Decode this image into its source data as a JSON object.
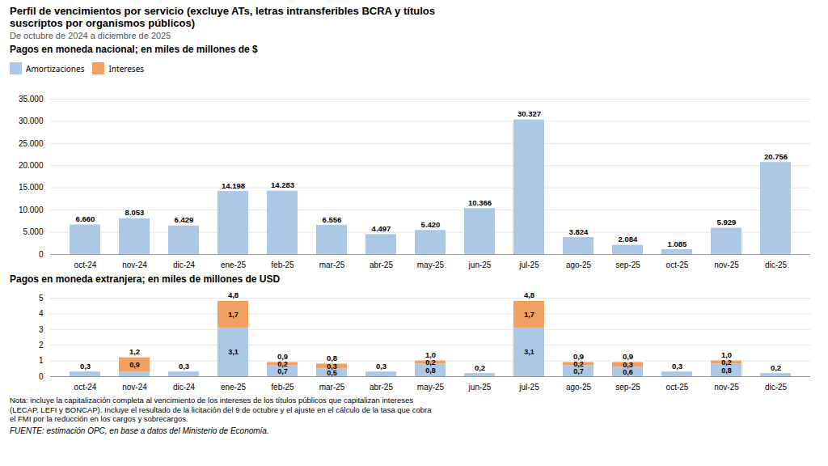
{
  "title": "Perfil de vencimientos por servicio (excluye ATs, letras intransferibles BCRA y títulos\nsuscriptos por organismos públicos)",
  "subtitle": "De octubre de 2024 a diciembre de 2025",
  "note": "Nota: incluye la capitalización completa al vencimiento de los intereses de los títulos públicos que capitalizan intereses\n(LECAP, LEFI y BONCAP). Incluye el resultado de la licitación del 9 de octubre y el ajuste en el cálculo de la tasa que cobra\nel FMI por la reducción en los cargos y sobrecargos.",
  "source": "FUENTE: estimación OPC, en base a datos del Ministerio de Economía.",
  "chart_data": [
    {
      "type": "bar",
      "stacked": true,
      "title": "Pagos en moneda nacional; en miles de millones de $",
      "categories": [
        "oct-24",
        "nov-24",
        "dic-24",
        "ene-25",
        "feb-25",
        "mar-25",
        "abr-25",
        "may-25",
        "jun-25",
        "jul-25",
        "ago-25",
        "sep-25",
        "oct-25",
        "nov-25",
        "dic-25"
      ],
      "series": [
        {
          "name": "Amortizaciones",
          "color": "#ADC8E6",
          "values": [
            6660,
            8053,
            6429,
            14198,
            14283,
            6556,
            4497,
            5420,
            10366,
            30327,
            3824,
            2084,
            1085,
            5929,
            20756
          ]
        },
        {
          "name": "Intereses",
          "color": "#F0A060",
          "values": [
            0,
            0,
            0,
            0,
            0,
            0,
            0,
            0,
            0,
            0,
            0,
            0,
            0,
            0,
            0
          ]
        }
      ],
      "totals": [
        6660,
        8053,
        6429,
        14198,
        14283,
        6556,
        4497,
        5420,
        10366,
        30327,
        3824,
        2084,
        1085,
        5929,
        20756
      ],
      "total_labels": [
        "6.660",
        "8.053",
        "6.429",
        "14.198",
        "14.283",
        "6.556",
        "4.497",
        "5.420",
        "10.366",
        "30.327",
        "3.824",
        "2.084",
        "1.085",
        "5.929",
        "20.756"
      ],
      "ylim": [
        0,
        35000
      ],
      "yticks": [
        0,
        {
          "value": 5000,
          "label": "5.000"
        },
        {
          "value": 10000,
          "label": "10.000"
        },
        {
          "value": 15000,
          "label": "15.000"
        },
        {
          "value": 20000,
          "label": "20.000"
        },
        {
          "value": 25000,
          "label": "25.000"
        },
        {
          "value": 30000,
          "label": "30.000"
        },
        {
          "value": 35000,
          "label": "35.000"
        }
      ],
      "grid": true,
      "legend": "upper left"
    },
    {
      "type": "bar",
      "stacked": true,
      "title": "Pagos en moneda extranjera; en miles de millones de USD",
      "categories": [
        "oct-24",
        "nov-24",
        "dic-24",
        "ene-25",
        "feb-25",
        "mar-25",
        "abr-25",
        "may-25",
        "jun-25",
        "jul-25",
        "ago-25",
        "sep-25",
        "oct-25",
        "nov-25",
        "dic-25"
      ],
      "series": [
        {
          "name": "Amortizaciones",
          "color": "#ADC8E6",
          "values": [
            0.3,
            0.3,
            0.3,
            3.1,
            0.7,
            0.5,
            0.3,
            0.8,
            0.2,
            3.1,
            0.7,
            0.6,
            0.3,
            0.8,
            0.2
          ],
          "data_labels": true,
          "value_labels": [
            null,
            null,
            null,
            "3,1",
            "0,7",
            "0,5",
            null,
            "0,8",
            null,
            "3,1",
            "0,7",
            "0,6",
            null,
            "0,8",
            null
          ]
        },
        {
          "name": "Intereses",
          "color": "#F0A060",
          "values": [
            0.0,
            0.9,
            0.0,
            1.7,
            0.2,
            0.3,
            0.0,
            0.2,
            0.0,
            1.7,
            0.2,
            0.3,
            0.0,
            0.2,
            0.0
          ],
          "data_labels": true,
          "value_labels": [
            null,
            "0,9",
            null,
            "1,7",
            "0,2",
            "0,3",
            null,
            "0,2",
            null,
            "1,7",
            "0,2",
            "0,3",
            null,
            "0,2",
            null
          ]
        }
      ],
      "totals": [
        0.3,
        1.2,
        0.3,
        4.8,
        0.9,
        0.8,
        0.3,
        1.0,
        0.2,
        4.8,
        0.9,
        0.9,
        0.3,
        1.0,
        0.2
      ],
      "total_labels": [
        "0,3",
        "1,2",
        "0,3",
        "4,8",
        "0,9",
        "0,8",
        "0,3",
        "1,0",
        "0,2",
        "4,8",
        "0,9",
        "0,9",
        "0,3",
        "1,0",
        "0,2"
      ],
      "ylim": [
        0,
        5
      ],
      "yticks": [
        0,
        1,
        2,
        3,
        4,
        5
      ],
      "grid": true
    }
  ]
}
